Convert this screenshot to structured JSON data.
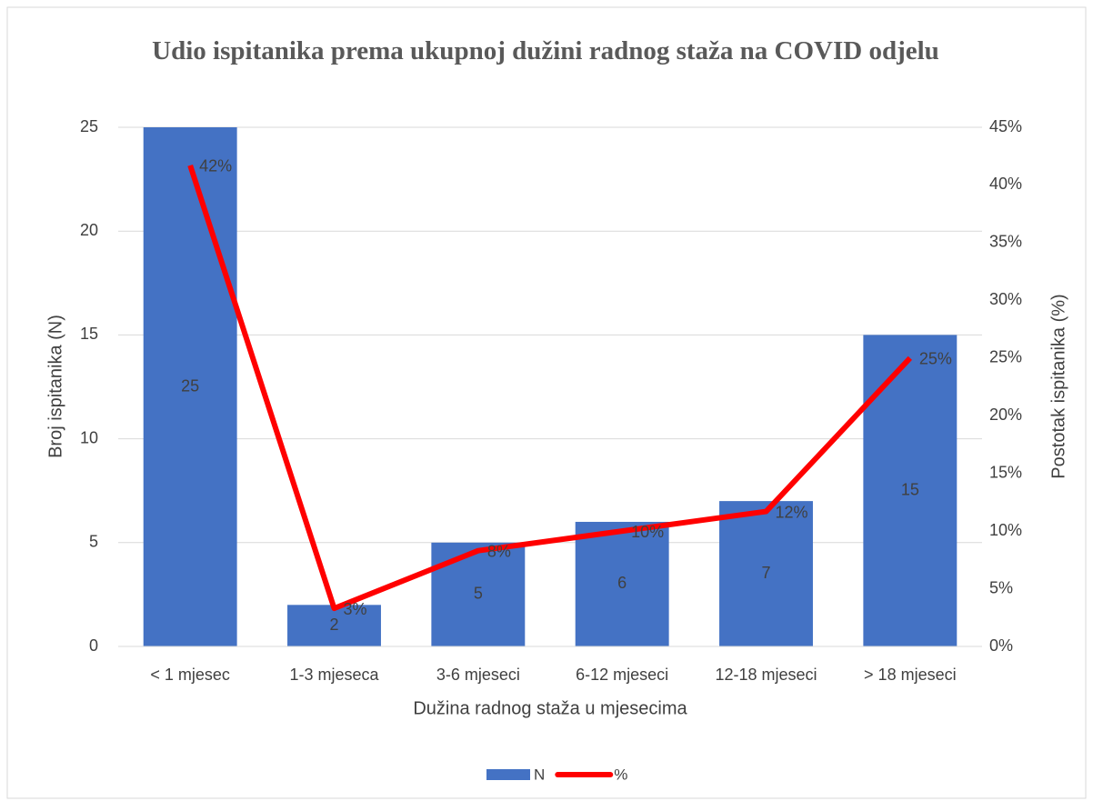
{
  "chart_data": {
    "type": "bar_line",
    "title": "Udio ispitanika prema ukupnoj dužini radnog staža na COVID odjelu",
    "x_label": "Dužina radnog staža u mjesecima",
    "y_label": "Broj ispitanika (N)",
    "y2_label": "Postotak ispitanika (%)",
    "categories": [
      "< 1 mjesec",
      "1-3 mjeseca",
      "3-6 mjeseci",
      "6-12 mjeseci",
      "12-18 mjeseci",
      "> 18 mjeseci"
    ],
    "series": [
      {
        "name": "N",
        "type": "bar",
        "color": "#4472c4",
        "values": [
          25,
          2,
          5,
          6,
          7,
          15
        ]
      },
      {
        "name": "%",
        "type": "line",
        "axis": "y2",
        "color": "#ff0000",
        "values": [
          41.7,
          3.3,
          8.3,
          10,
          11.7,
          25
        ],
        "value_labels": [
          "42%",
          "3%",
          "8%",
          "10%",
          "12%",
          "25%"
        ]
      }
    ],
    "ylim": [
      0,
      25
    ],
    "yticks": [
      0,
      5,
      10,
      15,
      20,
      25
    ],
    "y2lim": [
      0,
      45
    ],
    "y2ticks": [
      {
        "value": 0,
        "label": "0%"
      },
      {
        "value": 5,
        "label": "5%"
      },
      {
        "value": 10,
        "label": "10%"
      },
      {
        "value": 15,
        "label": "15%"
      },
      {
        "value": 20,
        "label": "20%"
      },
      {
        "value": 25,
        "label": "25%"
      },
      {
        "value": 30,
        "label": "30%"
      },
      {
        "value": 35,
        "label": "35%"
      },
      {
        "value": 40,
        "label": "40%"
      },
      {
        "value": 45,
        "label": "45%"
      }
    ],
    "grid": true,
    "legend": "bottom"
  }
}
